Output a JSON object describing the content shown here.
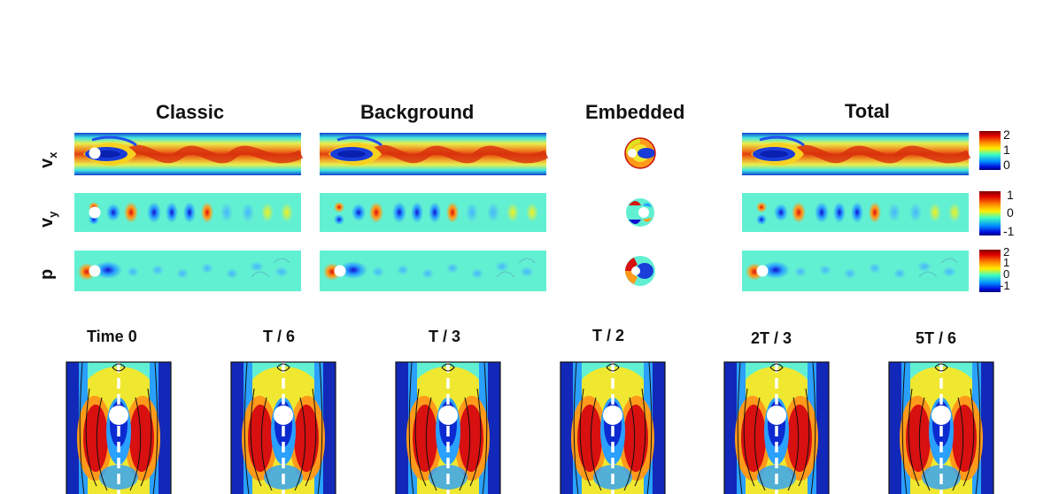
{
  "columns": [
    "Classic",
    "Background",
    "Embedded",
    "Total"
  ],
  "rows": [
    {
      "main": "v",
      "sub": "x"
    },
    {
      "main": "v",
      "sub": "y"
    },
    {
      "main": "p",
      "sub": ""
    }
  ],
  "colorbars": [
    {
      "ticks": [
        "2",
        "1",
        "0"
      ]
    },
    {
      "ticks": [
        "1",
        "0",
        "-1"
      ]
    },
    {
      "ticks": [
        "2",
        "1",
        "0",
        "-1"
      ]
    }
  ],
  "time_labels": [
    "Time 0",
    "T / 6",
    "T / 3",
    "T / 2",
    "2T / 3",
    "5T / 6"
  ],
  "colors": {
    "jet_low": "#0000c8",
    "jet_mid": "#5ef2d0",
    "jet_high": "#c80000",
    "axis_line": "#ffffff"
  }
}
